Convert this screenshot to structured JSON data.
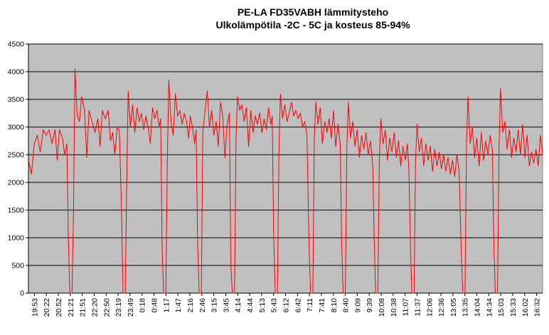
{
  "chart_data": {
    "type": "line",
    "title_line1": "PE-LA FD35VABH lämmitysteho",
    "title_line2": "Ulkolämpötila  -2C - 5C ja kosteus 85-94%",
    "xlabel": "",
    "ylabel": "",
    "ylim": [
      0,
      4500
    ],
    "yticks": [
      0,
      500,
      1000,
      1500,
      2000,
      2500,
      3000,
      3500,
      4000,
      4500
    ],
    "grid": true,
    "legend": "none",
    "plot_background": "#c0c0c0",
    "line_color": "#ff0000",
    "x_tick_labels": [
      "19:53",
      "20:22",
      "20:52",
      "21:21",
      "21:51",
      "22:20",
      "22:50",
      "23:19",
      "23:49",
      "0:18",
      "0:48",
      "1:17",
      "1:47",
      "2:16",
      "2:46",
      "3:15",
      "3:45",
      "4:14",
      "4:44",
      "5:13",
      "5:43",
      "6:12",
      "6:42",
      "7:11",
      "7:41",
      "8:10",
      "8:40",
      "9:09",
      "9:39",
      "10:08",
      "10:38",
      "11:07",
      "11:37",
      "12:06",
      "12:36",
      "13:05",
      "13:35",
      "14:04",
      "14:34",
      "15:03",
      "15:33",
      "16:02",
      "16:32"
    ],
    "series": [
      {
        "color": "#ff0000",
        "points": [
          [
            0,
            2400
          ],
          [
            0.2,
            2150
          ],
          [
            0.4,
            2700
          ],
          [
            0.6,
            2850
          ],
          [
            0.8,
            2550
          ],
          [
            1.0,
            2950
          ],
          [
            1.2,
            2850
          ],
          [
            1.4,
            2950
          ],
          [
            1.6,
            2700
          ],
          [
            1.8,
            2950
          ],
          [
            1.95,
            2400
          ],
          [
            2.1,
            2950
          ],
          [
            2.3,
            2800
          ],
          [
            2.45,
            2500
          ],
          [
            2.6,
            2700
          ],
          [
            2.7,
            1000
          ],
          [
            2.8,
            0
          ],
          [
            2.95,
            0
          ],
          [
            3.05,
            1500
          ],
          [
            3.15,
            4050
          ],
          [
            3.3,
            3200
          ],
          [
            3.45,
            3100
          ],
          [
            3.6,
            3550
          ],
          [
            3.8,
            3300
          ],
          [
            3.95,
            2450
          ],
          [
            4.1,
            3300
          ],
          [
            4.3,
            3100
          ],
          [
            4.5,
            2900
          ],
          [
            4.7,
            3150
          ],
          [
            4.85,
            2650
          ],
          [
            5.0,
            3300
          ],
          [
            5.2,
            3150
          ],
          [
            5.4,
            3300
          ],
          [
            5.55,
            2750
          ],
          [
            5.7,
            2900
          ],
          [
            5.85,
            2500
          ],
          [
            6.0,
            3000
          ],
          [
            6.15,
            2950
          ],
          [
            6.3,
            1500
          ],
          [
            6.4,
            0
          ],
          [
            6.55,
            0
          ],
          [
            6.65,
            2000
          ],
          [
            6.75,
            3650
          ],
          [
            6.9,
            3000
          ],
          [
            7.05,
            3400
          ],
          [
            7.2,
            2900
          ],
          [
            7.35,
            3350
          ],
          [
            7.5,
            3100
          ],
          [
            7.65,
            3250
          ],
          [
            7.8,
            2950
          ],
          [
            7.95,
            3200
          ],
          [
            8.1,
            3000
          ],
          [
            8.25,
            2700
          ],
          [
            8.4,
            3350
          ],
          [
            8.55,
            3150
          ],
          [
            8.7,
            3300
          ],
          [
            8.85,
            3000
          ],
          [
            8.95,
            3150
          ],
          [
            9.05,
            800
          ],
          [
            9.15,
            0
          ],
          [
            9.3,
            0
          ],
          [
            9.4,
            2400
          ],
          [
            9.5,
            3850
          ],
          [
            9.65,
            3100
          ],
          [
            9.8,
            2850
          ],
          [
            9.95,
            3600
          ],
          [
            10.1,
            3200
          ],
          [
            10.25,
            3300
          ],
          [
            10.4,
            3050
          ],
          [
            10.55,
            3250
          ],
          [
            10.7,
            3100
          ],
          [
            10.85,
            2800
          ],
          [
            10.95,
            3200
          ],
          [
            11.1,
            3000
          ],
          [
            11.25,
            2700
          ],
          [
            11.35,
            2950
          ],
          [
            11.45,
            900
          ],
          [
            11.55,
            0
          ],
          [
            11.7,
            0
          ],
          [
            11.8,
            2900
          ],
          [
            11.95,
            3300
          ],
          [
            12.1,
            3650
          ],
          [
            12.25,
            3000
          ],
          [
            12.4,
            3300
          ],
          [
            12.55,
            2850
          ],
          [
            12.7,
            3100
          ],
          [
            12.85,
            2650
          ],
          [
            13.0,
            3450
          ],
          [
            13.15,
            3200
          ],
          [
            13.3,
            2450
          ],
          [
            13.45,
            3050
          ],
          [
            13.6,
            3250
          ],
          [
            13.7,
            500
          ],
          [
            13.8,
            0
          ],
          [
            13.95,
            0
          ],
          [
            14.05,
            2800
          ],
          [
            14.15,
            3550
          ],
          [
            14.3,
            3300
          ],
          [
            14.45,
            3400
          ],
          [
            14.6,
            3100
          ],
          [
            14.75,
            3350
          ],
          [
            14.9,
            2650
          ],
          [
            15.05,
            3300
          ],
          [
            15.2,
            2900
          ],
          [
            15.35,
            3200
          ],
          [
            15.5,
            3050
          ],
          [
            15.65,
            3250
          ],
          [
            15.8,
            2900
          ],
          [
            15.95,
            3150
          ],
          [
            16.1,
            2950
          ],
          [
            16.25,
            3350
          ],
          [
            16.4,
            3050
          ],
          [
            16.5,
            3200
          ],
          [
            16.6,
            1000
          ],
          [
            16.7,
            0
          ],
          [
            16.85,
            0
          ],
          [
            16.95,
            2500
          ],
          [
            17.05,
            3600
          ],
          [
            17.2,
            3150
          ],
          [
            17.35,
            3400
          ],
          [
            17.5,
            3100
          ],
          [
            17.65,
            3250
          ],
          [
            17.8,
            3450
          ],
          [
            17.95,
            3200
          ],
          [
            18.1,
            3300
          ],
          [
            18.25,
            3150
          ],
          [
            18.4,
            3250
          ],
          [
            18.55,
            3000
          ],
          [
            18.7,
            3100
          ],
          [
            18.85,
            2850
          ],
          [
            19.0,
            800
          ],
          [
            19.1,
            0
          ],
          [
            19.25,
            0
          ],
          [
            19.35,
            2800
          ],
          [
            19.45,
            3450
          ],
          [
            19.6,
            3050
          ],
          [
            19.75,
            3350
          ],
          [
            19.9,
            2700
          ],
          [
            20.05,
            3100
          ],
          [
            20.2,
            2900
          ],
          [
            20.35,
            3150
          ],
          [
            20.5,
            2800
          ],
          [
            20.65,
            3300
          ],
          [
            20.8,
            2650
          ],
          [
            20.95,
            3050
          ],
          [
            21.1,
            2700
          ],
          [
            21.2,
            900
          ],
          [
            21.3,
            0
          ],
          [
            21.45,
            0
          ],
          [
            21.55,
            2600
          ],
          [
            21.65,
            3450
          ],
          [
            21.8,
            2800
          ],
          [
            21.95,
            3100
          ],
          [
            22.1,
            2650
          ],
          [
            22.25,
            2950
          ],
          [
            22.4,
            2450
          ],
          [
            22.55,
            2850
          ],
          [
            22.7,
            2600
          ],
          [
            22.85,
            2900
          ],
          [
            23.0,
            2500
          ],
          [
            23.15,
            2750
          ],
          [
            23.3,
            2300
          ],
          [
            23.4,
            1000
          ],
          [
            23.5,
            0
          ],
          [
            23.65,
            0
          ],
          [
            23.75,
            2400
          ],
          [
            23.85,
            3150
          ],
          [
            24.0,
            2700
          ],
          [
            24.15,
            2950
          ],
          [
            24.3,
            2400
          ],
          [
            24.45,
            2800
          ],
          [
            24.6,
            2550
          ],
          [
            24.75,
            2900
          ],
          [
            24.9,
            2450
          ],
          [
            25.05,
            2750
          ],
          [
            25.2,
            2300
          ],
          [
            25.35,
            2650
          ],
          [
            25.5,
            2400
          ],
          [
            25.65,
            2700
          ],
          [
            25.75,
            2200
          ],
          [
            25.85,
            900
          ],
          [
            25.95,
            0
          ],
          [
            26.1,
            0
          ],
          [
            26.2,
            2400
          ],
          [
            26.3,
            3050
          ],
          [
            26.45,
            2550
          ],
          [
            26.6,
            2800
          ],
          [
            26.75,
            2300
          ],
          [
            26.9,
            2700
          ],
          [
            27.05,
            2400
          ],
          [
            27.2,
            2650
          ],
          [
            27.35,
            2200
          ],
          [
            27.5,
            2600
          ],
          [
            27.65,
            2300
          ],
          [
            27.8,
            2550
          ],
          [
            27.95,
            2250
          ],
          [
            28.1,
            2500
          ],
          [
            28.25,
            2200
          ],
          [
            28.4,
            2450
          ],
          [
            28.55,
            2150
          ],
          [
            28.7,
            2400
          ],
          [
            28.85,
            2100
          ],
          [
            29.0,
            2500
          ],
          [
            29.15,
            2200
          ],
          [
            29.3,
            700
          ],
          [
            29.4,
            0
          ],
          [
            29.55,
            0
          ],
          [
            29.65,
            2700
          ],
          [
            29.75,
            3550
          ],
          [
            29.9,
            2700
          ],
          [
            30.05,
            3000
          ],
          [
            30.2,
            2450
          ],
          [
            30.35,
            2800
          ],
          [
            30.5,
            2300
          ],
          [
            30.65,
            2900
          ],
          [
            30.8,
            2400
          ],
          [
            30.95,
            2750
          ],
          [
            31.1,
            2500
          ],
          [
            31.25,
            2850
          ],
          [
            31.4,
            2600
          ],
          [
            31.5,
            900
          ],
          [
            31.6,
            0
          ],
          [
            31.75,
            0
          ],
          [
            31.85,
            2600
          ],
          [
            31.95,
            3700
          ],
          [
            32.1,
            2900
          ],
          [
            32.25,
            3100
          ],
          [
            32.4,
            2600
          ],
          [
            32.55,
            2950
          ],
          [
            32.7,
            2450
          ],
          [
            32.85,
            2800
          ],
          [
            33.0,
            2550
          ],
          [
            33.15,
            2950
          ],
          [
            33.3,
            2500
          ],
          [
            33.45,
            3050
          ],
          [
            33.6,
            2450
          ],
          [
            33.75,
            2850
          ],
          [
            33.9,
            2300
          ],
          [
            34.05,
            2550
          ],
          [
            34.2,
            2350
          ],
          [
            34.35,
            2600
          ],
          [
            34.5,
            2300
          ],
          [
            34.65,
            2850
          ],
          [
            34.8,
            2500
          ]
        ]
      }
    ]
  }
}
